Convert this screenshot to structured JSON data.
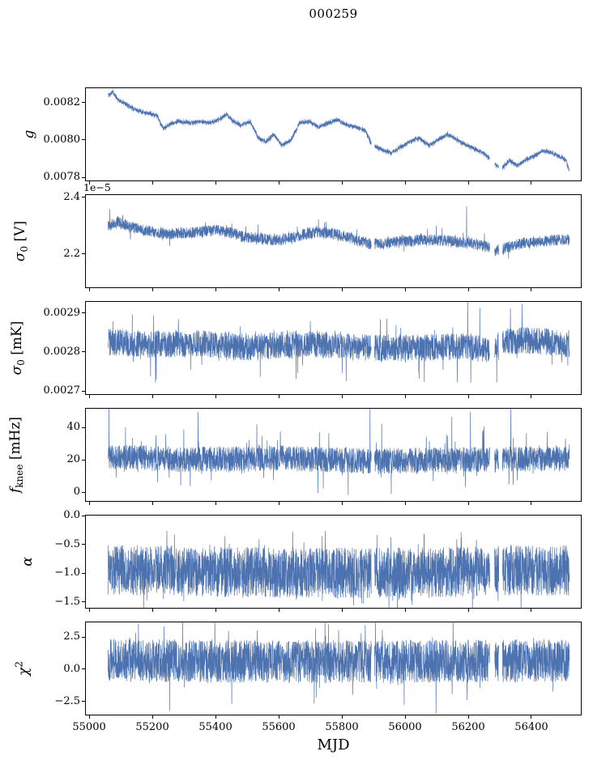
{
  "title": "000259",
  "chart_data": {
    "type": "line",
    "title": "000259",
    "xlabel": "MJD",
    "line_color": "#4c72b0",
    "xlim": [
      54987,
      56559
    ],
    "x_start": 55060,
    "x_end": 56520,
    "n_points": 3000,
    "gaps": [
      [
        55893,
        55903
      ],
      [
        56268,
        56283
      ],
      [
        56297,
        56308
      ]
    ],
    "xticks": [
      {
        "v": 55000,
        "label": "55000"
      },
      {
        "v": 55200,
        "label": "55200"
      },
      {
        "v": 55400,
        "label": "55400"
      },
      {
        "v": 55600,
        "label": "55600"
      },
      {
        "v": 55800,
        "label": "55800"
      },
      {
        "v": 56000,
        "label": "56000"
      },
      {
        "v": 56200,
        "label": "56200"
      },
      {
        "v": 56400,
        "label": "56400"
      }
    ],
    "panels": [
      {
        "id": "g",
        "ylabel_html": "<i>g</i>",
        "ylim": [
          0.00778,
          0.00828
        ],
        "yticks": [
          {
            "v": 0.0078,
            "label": "0.0078"
          },
          {
            "v": 0.008,
            "label": "0.0080"
          },
          {
            "v": 0.0082,
            "label": "0.0082"
          }
        ],
        "offset_label": null,
        "noise": 1e-05,
        "tail_prob": 0.0,
        "tail_amp": 0,
        "spikes": [],
        "trend": [
          [
            55060,
            0.00824
          ],
          [
            55075,
            0.00826
          ],
          [
            55090,
            0.00822
          ],
          [
            55110,
            0.0082
          ],
          [
            55140,
            0.00817
          ],
          [
            55170,
            0.00815
          ],
          [
            55200,
            0.00814
          ],
          [
            55215,
            0.00813
          ],
          [
            55235,
            0.00806
          ],
          [
            55260,
            0.00809
          ],
          [
            55290,
            0.0081
          ],
          [
            55320,
            0.00809
          ],
          [
            55350,
            0.0081
          ],
          [
            55380,
            0.00809
          ],
          [
            55410,
            0.00811
          ],
          [
            55435,
            0.00814
          ],
          [
            55455,
            0.0081
          ],
          [
            55480,
            0.00808
          ],
          [
            55510,
            0.0081
          ],
          [
            55535,
            0.00801
          ],
          [
            55560,
            0.00799
          ],
          [
            55585,
            0.00803
          ],
          [
            55610,
            0.00797
          ],
          [
            55640,
            0.008
          ],
          [
            55665,
            0.00809
          ],
          [
            55695,
            0.0081
          ],
          [
            55725,
            0.00807
          ],
          [
            55755,
            0.00809
          ],
          [
            55785,
            0.00811
          ],
          [
            55815,
            0.00808
          ],
          [
            55845,
            0.00807
          ],
          [
            55875,
            0.00805
          ],
          [
            55895,
            0.00797
          ],
          [
            55925,
            0.00795
          ],
          [
            55955,
            0.00793
          ],
          [
            55985,
            0.00796
          ],
          [
            56015,
            0.00799
          ],
          [
            56045,
            0.00801
          ],
          [
            56075,
            0.00797
          ],
          [
            56105,
            0.008
          ],
          [
            56135,
            0.00803
          ],
          [
            56165,
            0.008
          ],
          [
            56195,
            0.00797
          ],
          [
            56225,
            0.00795
          ],
          [
            56255,
            0.00792
          ],
          [
            56285,
            0.00787
          ],
          [
            56305,
            0.00784
          ],
          [
            56330,
            0.00789
          ],
          [
            56355,
            0.00786
          ],
          [
            56380,
            0.00789
          ],
          [
            56405,
            0.00791
          ],
          [
            56435,
            0.00794
          ],
          [
            56465,
            0.00793
          ],
          [
            56490,
            0.00791
          ],
          [
            56510,
            0.00789
          ],
          [
            56520,
            0.00783
          ]
        ]
      },
      {
        "id": "sigma0-v",
        "ylabel_html": "<i>σ</i><sub>0</sub> [V]",
        "ylim": [
          2.08,
          2.41
        ],
        "yticks": [
          {
            "v": 2.2,
            "label": "2.2"
          },
          {
            "v": 2.4,
            "label": "2.4"
          }
        ],
        "offset_label": "1e−5",
        "noise": 0.02,
        "tail_prob": 0.02,
        "tail_amp": 0.02,
        "spikes": [
          [
            55065,
            2.36
          ],
          [
            56195,
            2.37
          ]
        ],
        "trend": [
          [
            55060,
            2.3
          ],
          [
            55090,
            2.315
          ],
          [
            55130,
            2.295
          ],
          [
            55170,
            2.285
          ],
          [
            55210,
            2.275
          ],
          [
            55250,
            2.27
          ],
          [
            55290,
            2.275
          ],
          [
            55330,
            2.275
          ],
          [
            55370,
            2.28
          ],
          [
            55410,
            2.285
          ],
          [
            55450,
            2.275
          ],
          [
            55490,
            2.26
          ],
          [
            55530,
            2.255
          ],
          [
            55570,
            2.25
          ],
          [
            55610,
            2.25
          ],
          [
            55650,
            2.26
          ],
          [
            55690,
            2.272
          ],
          [
            55730,
            2.278
          ],
          [
            55770,
            2.272
          ],
          [
            55810,
            2.262
          ],
          [
            55850,
            2.247
          ],
          [
            55890,
            2.235
          ],
          [
            55930,
            2.238
          ],
          [
            55970,
            2.242
          ],
          [
            56010,
            2.246
          ],
          [
            56050,
            2.25
          ],
          [
            56090,
            2.25
          ],
          [
            56130,
            2.246
          ],
          [
            56170,
            2.242
          ],
          [
            56210,
            2.238
          ],
          [
            56250,
            2.228
          ],
          [
            56290,
            2.21
          ],
          [
            56330,
            2.225
          ],
          [
            56370,
            2.238
          ],
          [
            56410,
            2.242
          ],
          [
            56450,
            2.246
          ],
          [
            56490,
            2.25
          ],
          [
            56520,
            2.25
          ]
        ]
      },
      {
        "id": "sigma0-mk",
        "ylabel_html": "<i>σ</i><sub>0</sub> [mK]",
        "ylim": [
          0.00269,
          0.00293
        ],
        "yticks": [
          {
            "v": 0.0027,
            "label": "0.0027"
          },
          {
            "v": 0.0028,
            "label": "0.0028"
          },
          {
            "v": 0.0029,
            "label": "0.0029"
          }
        ],
        "offset_label": null,
        "noise": 3.5e-05,
        "tail_prob": 0.02,
        "tail_amp": 4e-05,
        "spikes": [
          [
            55075,
            0.00288
          ],
          [
            55210,
            0.00272
          ],
          [
            55655,
            0.00273
          ],
          [
            55660,
            0.002745
          ],
          [
            56198,
            0.00294
          ],
          [
            56290,
            0.00272
          ]
        ],
        "trend": [
          [
            55060,
            0.002825
          ],
          [
            55200,
            0.00282
          ],
          [
            55350,
            0.002822
          ],
          [
            55500,
            0.002812
          ],
          [
            55650,
            0.00282
          ],
          [
            55800,
            0.002818
          ],
          [
            55900,
            0.00281
          ],
          [
            56000,
            0.002812
          ],
          [
            56100,
            0.002812
          ],
          [
            56200,
            0.002815
          ],
          [
            56260,
            0.0028
          ],
          [
            56320,
            0.002828
          ],
          [
            56400,
            0.00283
          ],
          [
            56460,
            0.002825
          ],
          [
            56520,
            0.002818
          ]
        ]
      },
      {
        "id": "fknee",
        "ylabel_html": "<i>f</i><sub>knee</sub> [mHz]",
        "ylim": [
          -6,
          52
        ],
        "yticks": [
          {
            "v": 0,
            "label": "0"
          },
          {
            "v": 20,
            "label": "20"
          },
          {
            "v": 40,
            "label": "40"
          }
        ],
        "offset_label": null,
        "noise": 8,
        "tail_prob": 0.05,
        "tail_amp": 9,
        "spikes": [
          [
            55063,
            55
          ],
          [
            55345,
            50
          ],
          [
            55889,
            55
          ],
          [
            56148,
            47
          ],
          [
            56207,
            50
          ],
          [
            56335,
            55
          ]
        ],
        "trend": [
          [
            55060,
            22
          ],
          [
            55300,
            20
          ],
          [
            55600,
            21
          ],
          [
            55900,
            19
          ],
          [
            56200,
            20
          ],
          [
            56520,
            21
          ]
        ]
      },
      {
        "id": "alpha",
        "ylabel_html": "<i>α</i>",
        "ylim": [
          -1.62,
          0.02
        ],
        "yticks": [
          {
            "v": -1.5,
            "label": "−1.5"
          },
          {
            "v": -1.0,
            "label": "−1.0"
          },
          {
            "v": -0.5,
            "label": "−0.5"
          },
          {
            "v": 0.0,
            "label": "0.0"
          }
        ],
        "offset_label": null,
        "noise": 0.45,
        "tail_prob": 0.04,
        "tail_amp": 0.2,
        "spikes": [
          [
            55430,
            -0.35
          ],
          [
            56060,
            -0.33
          ]
        ],
        "trend": [
          [
            55060,
            -0.95
          ],
          [
            55600,
            -1.0
          ],
          [
            56000,
            -1.0
          ],
          [
            56520,
            -0.95
          ]
        ]
      },
      {
        "id": "chi2",
        "ylabel_html": "<i>χ</i><sup>2</sup>",
        "ylim": [
          -3.6,
          3.7
        ],
        "yticks": [
          {
            "v": -2.5,
            "label": "−2.5"
          },
          {
            "v": 0.0,
            "label": "0.0"
          },
          {
            "v": 2.5,
            "label": "2.5"
          }
        ],
        "offset_label": null,
        "noise": 1.7,
        "tail_prob": 0.04,
        "tail_amp": 1.2,
        "spikes": [
          [
            55255,
            -3.3
          ],
          [
            56098,
            -3.5
          ]
        ],
        "trend": [
          [
            55060,
            0.7
          ],
          [
            55600,
            0.6
          ],
          [
            56000,
            0.6
          ],
          [
            56520,
            0.7
          ]
        ]
      }
    ]
  }
}
